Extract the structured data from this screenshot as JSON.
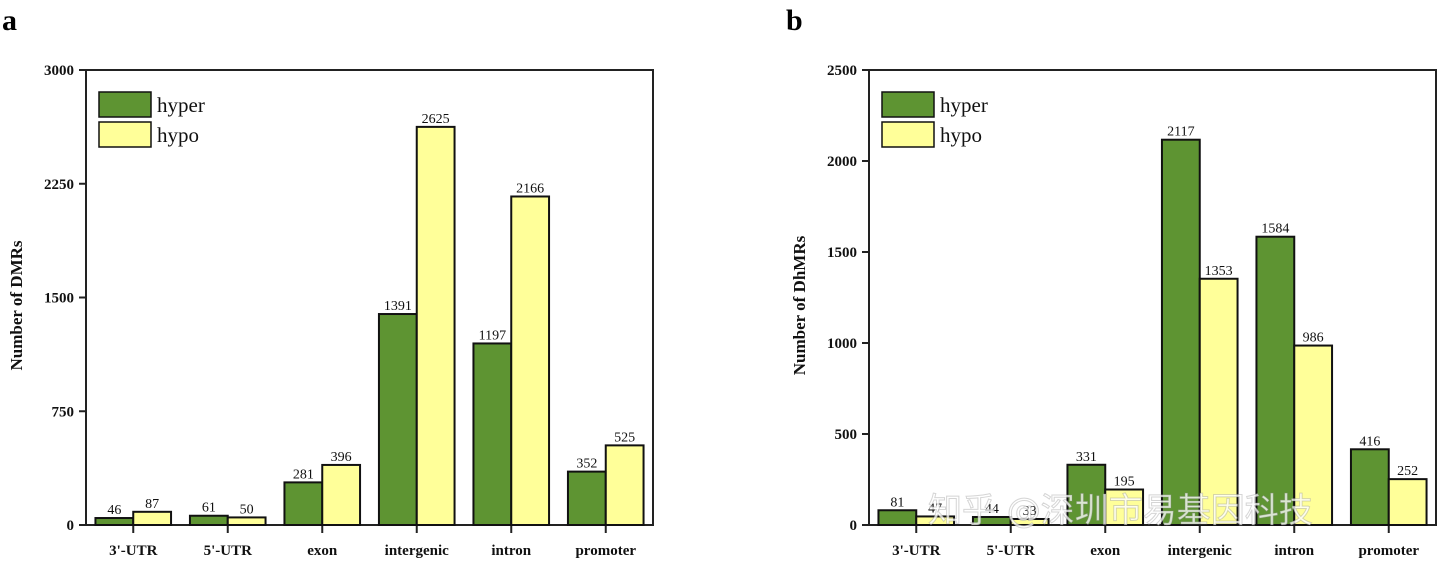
{
  "colors": {
    "hyper": "#5e9432",
    "hypo": "#ffff99",
    "axis": "#222222"
  },
  "watermark": "知乎 @深圳市易基因科技",
  "chart_data": [
    {
      "panel": "a",
      "type": "bar",
      "title": "",
      "xlabel": "",
      "ylabel": "Number of DMRs",
      "ylim": [
        0,
        3000
      ],
      "yticks": [
        0,
        750,
        1500,
        2250,
        3000
      ],
      "categories": [
        "3'-UTR",
        "5'-UTR",
        "exon",
        "intergenic",
        "intron",
        "promoter"
      ],
      "series": [
        {
          "name": "hyper",
          "values": [
            46,
            61,
            281,
            1391,
            1197,
            352
          ]
        },
        {
          "name": "hypo",
          "values": [
            87,
            50,
            396,
            2625,
            2166,
            525
          ]
        }
      ],
      "legend": "top-left",
      "grid": false
    },
    {
      "panel": "b",
      "type": "bar",
      "title": "",
      "xlabel": "",
      "ylabel": "Number of DhMRs",
      "ylim": [
        0,
        2500
      ],
      "yticks": [
        0,
        500,
        1000,
        1500,
        2000,
        2500
      ],
      "categories": [
        "3'-UTR",
        "5'-UTR",
        "exon",
        "intergenic",
        "intron",
        "promoter"
      ],
      "series": [
        {
          "name": "hyper",
          "values": [
            81,
            44,
            331,
            2117,
            1584,
            416
          ]
        },
        {
          "name": "hypo",
          "values": [
            47,
            33,
            195,
            1353,
            986,
            252
          ]
        }
      ],
      "legend": "top-left",
      "grid": false
    }
  ]
}
